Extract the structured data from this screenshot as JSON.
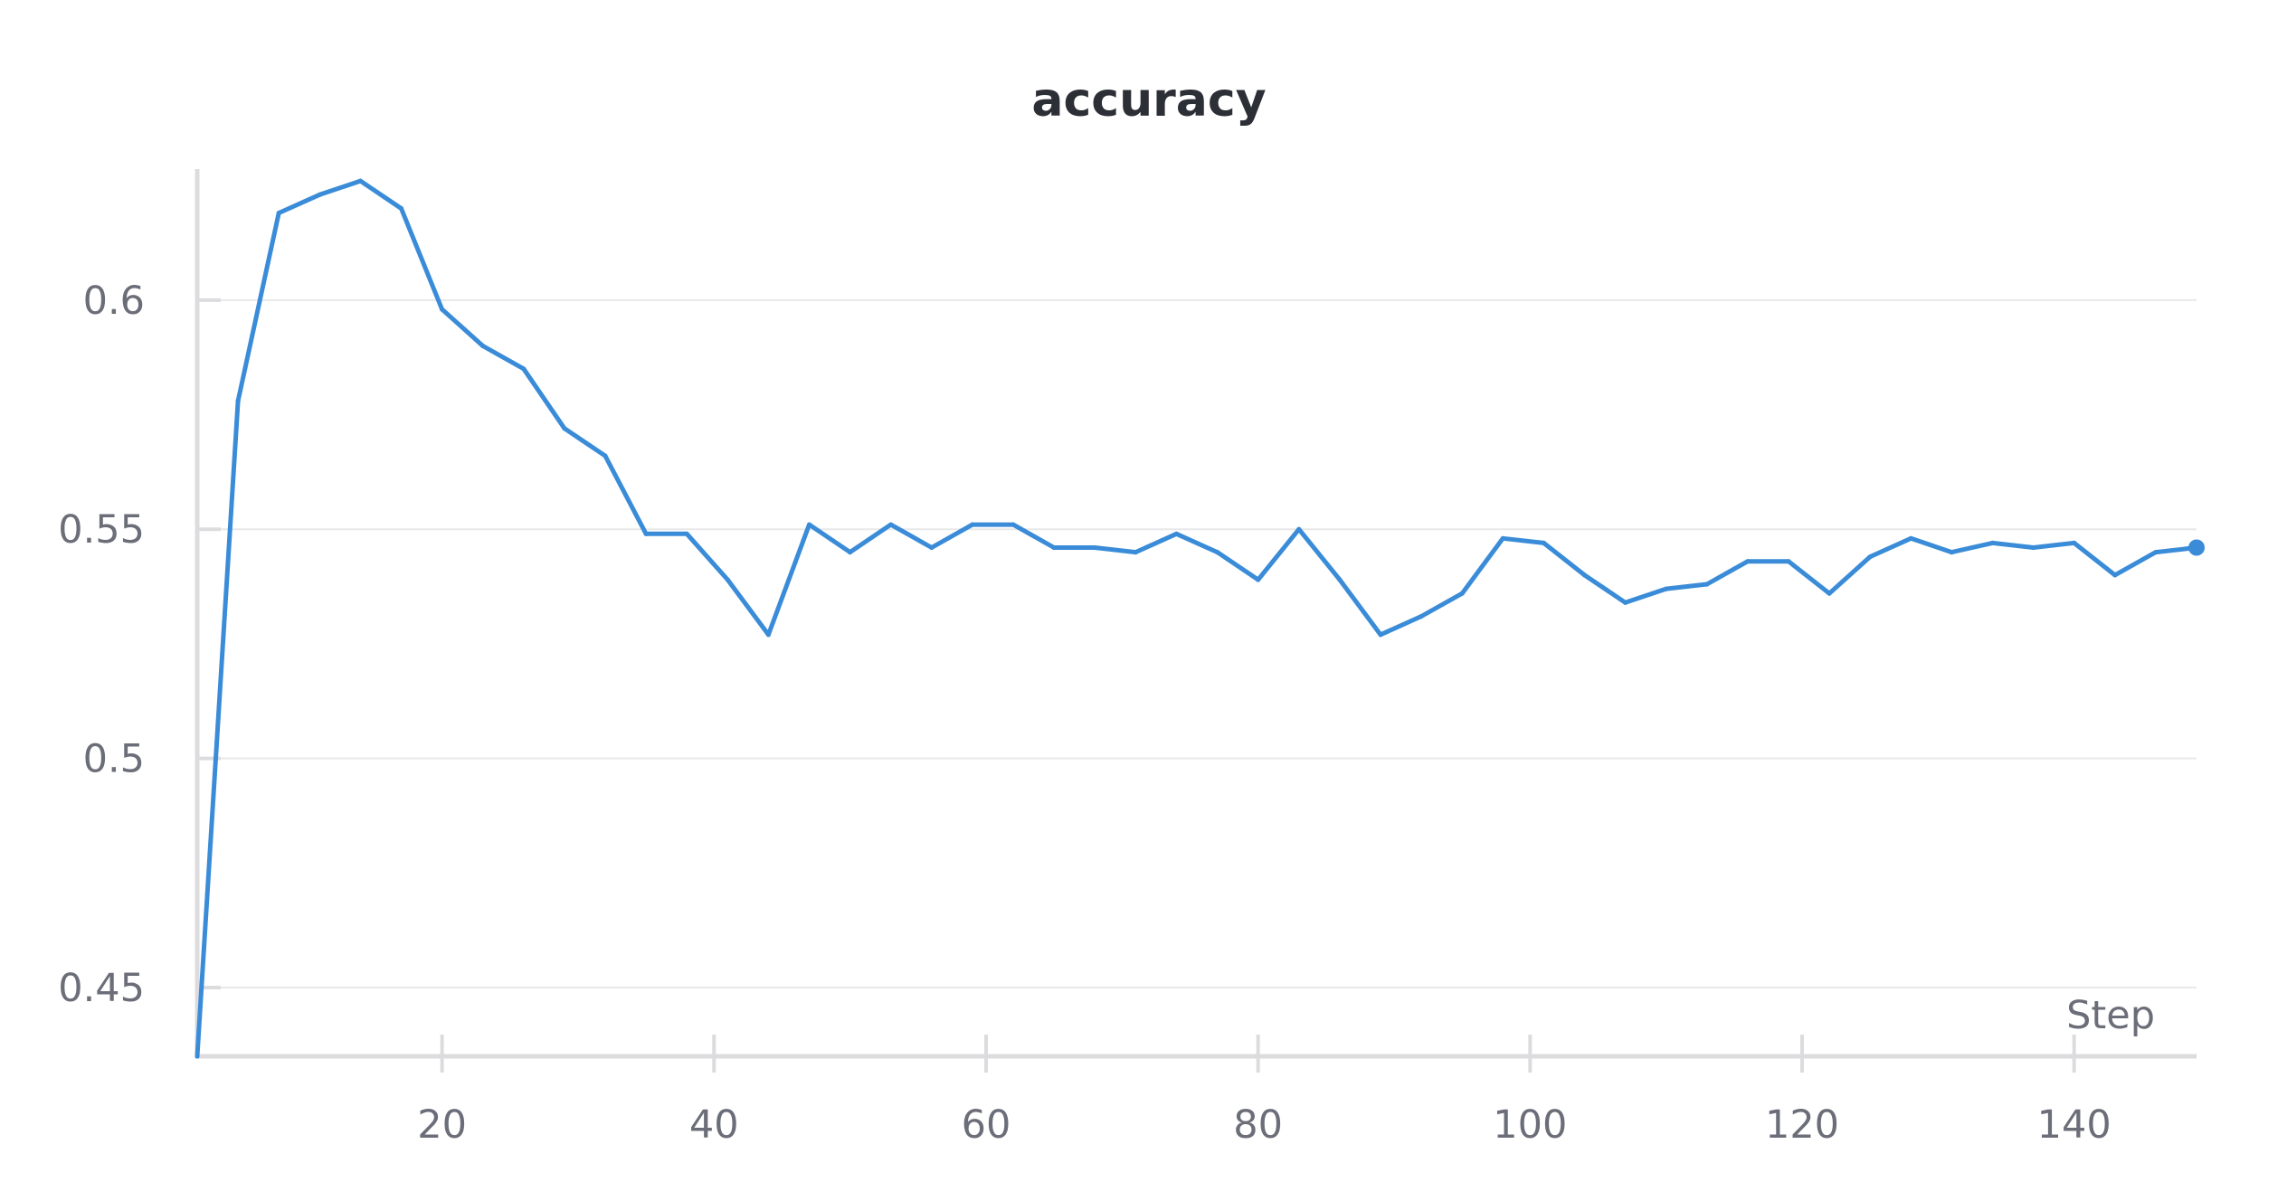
{
  "chart_data": {
    "type": "line",
    "title": "accuracy",
    "xlabel": "Step",
    "ylabel": "",
    "xlim": [
      2,
      149
    ],
    "ylim": [
      0.435,
      0.627
    ],
    "xticks": [
      20,
      40,
      60,
      80,
      100,
      120,
      140
    ],
    "xtick_labels": [
      "20",
      "40",
      "60",
      "80",
      "100",
      "120",
      "140"
    ],
    "yticks": [
      0.45,
      0.5,
      0.55,
      0.6
    ],
    "ytick_labels": [
      "0.45",
      "0.5",
      "0.55",
      "0.6"
    ],
    "grid": true,
    "series": [
      {
        "color": "#3a8cd8",
        "x": [
          2,
          5,
          8,
          11,
          14,
          17,
          20,
          23,
          26,
          29,
          32,
          35,
          38,
          41,
          44,
          47,
          50,
          53,
          56,
          59,
          62,
          65,
          68,
          71,
          74,
          77,
          80,
          83,
          86,
          89,
          92,
          95,
          98,
          101,
          104,
          107,
          110,
          113,
          116,
          119,
          122,
          125,
          128,
          131,
          134,
          137,
          140,
          143,
          146,
          149
        ],
        "y": [
          0.435,
          0.578,
          0.619,
          0.623,
          0.626,
          0.62,
          0.598,
          0.59,
          0.585,
          0.572,
          0.566,
          0.549,
          0.549,
          0.539,
          0.527,
          0.551,
          0.545,
          0.551,
          0.546,
          0.551,
          0.551,
          0.546,
          0.546,
          0.545,
          0.549,
          0.545,
          0.539,
          0.55,
          0.539,
          0.527,
          0.531,
          0.536,
          0.548,
          0.547,
          0.54,
          0.534,
          0.537,
          0.538,
          0.543,
          0.543,
          0.536,
          0.544,
          0.548,
          0.545,
          0.547,
          0.546,
          0.547,
          0.54,
          0.545,
          0.546
        ]
      }
    ]
  }
}
